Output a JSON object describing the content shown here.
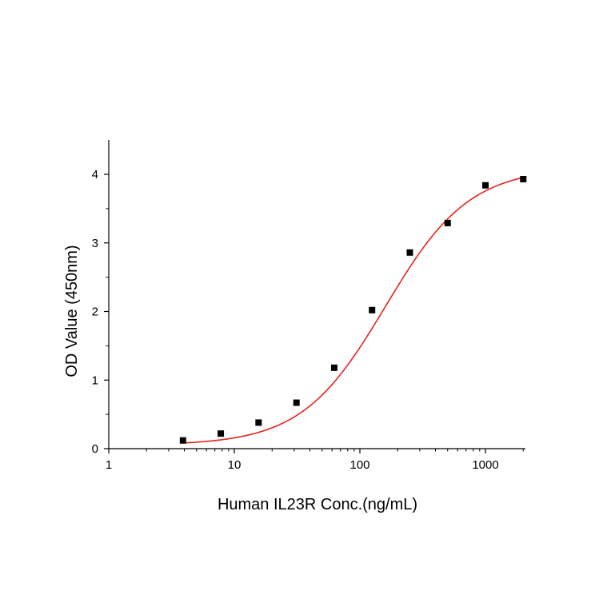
{
  "chart_data": {
    "type": "scatter",
    "title": "",
    "xlabel": "Human IL23R Conc.(ng/mL)",
    "ylabel": "OD Value (450nm)",
    "x_scale": "log",
    "xlim": [
      1,
      2200
    ],
    "ylim": [
      0,
      4.5
    ],
    "x_ticks": [
      1,
      10,
      100,
      1000
    ],
    "x_tick_labels": [
      "1",
      "10",
      "100",
      "1000"
    ],
    "y_ticks": [
      0,
      1,
      2,
      3,
      4
    ],
    "y_tick_labels": [
      "0",
      "1",
      "2",
      "3",
      "4"
    ],
    "grid": false,
    "legend": "none",
    "series": [
      {
        "kind": "points",
        "marker": "square",
        "color": "#000000",
        "x": [
          3.9,
          7.8,
          15.6,
          31.25,
          62.5,
          125,
          250,
          500,
          1000,
          2000
        ],
        "y": [
          0.12,
          0.22,
          0.38,
          0.67,
          1.18,
          2.02,
          2.86,
          3.29,
          3.84,
          3.93
        ]
      },
      {
        "kind": "fit-curve",
        "model": "4PL",
        "color": "#e8231e",
        "params": {
          "bottom": 0.05,
          "top": 4.1,
          "ec50": 160,
          "hill": 1.3
        },
        "x_range": [
          3.9,
          2000
        ]
      }
    ]
  }
}
